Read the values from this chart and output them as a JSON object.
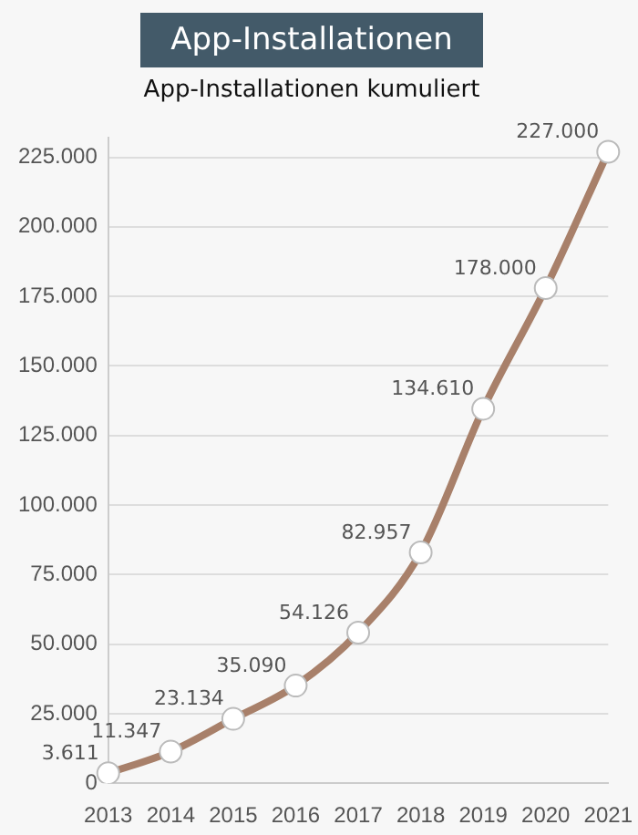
{
  "chart_data": {
    "type": "line",
    "title": "App-Installationen",
    "subtitle": "App-Installationen kumuliert",
    "categories": [
      "2013",
      "2014",
      "2015",
      "2016",
      "2017",
      "2018",
      "2019",
      "2020",
      "2021"
    ],
    "series": [
      {
        "color": "#a8806a",
        "values": [
          3611,
          11347,
          23134,
          35090,
          54126,
          82957,
          134610,
          178000,
          227000
        ],
        "value_labels": [
          "3.611",
          "11.347",
          "23.134",
          "35.090",
          "54.126",
          "82.957",
          "134.610",
          "178.000",
          "227.000"
        ]
      }
    ],
    "ylim": [
      0,
      232000
    ],
    "yticks": [
      {
        "value": 0,
        "label": "0"
      },
      {
        "value": 25000,
        "label": "25.000"
      },
      {
        "value": 50000,
        "label": "50.000"
      },
      {
        "value": 75000,
        "label": "75.000"
      },
      {
        "value": 100000,
        "label": "100.000"
      },
      {
        "value": 125000,
        "label": "125.000"
      },
      {
        "value": 150000,
        "label": "150.000"
      },
      {
        "value": 175000,
        "label": "175.000"
      },
      {
        "value": 200000,
        "label": "200.000"
      },
      {
        "value": 225000,
        "label": "225.000"
      }
    ],
    "grid": "y",
    "legend": false,
    "marker": "circle",
    "line_style": "solid"
  }
}
